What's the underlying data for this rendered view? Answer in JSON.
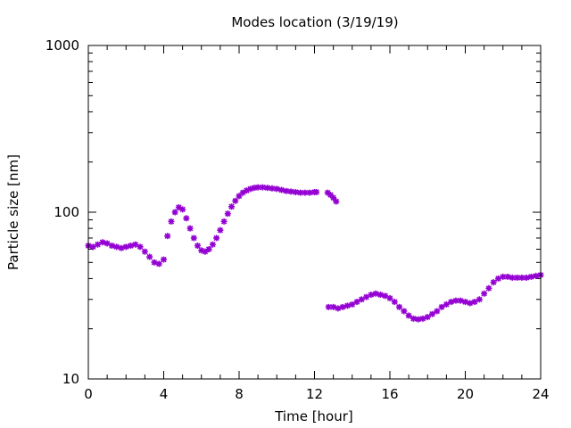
{
  "chart_data": {
    "type": "scatter",
    "title": "Modes location (3/19/19)",
    "xlabel": "Time [hour]",
    "ylabel": "Particle size [nm]",
    "xlim": [
      0,
      24
    ],
    "ylim": [
      10,
      1000
    ],
    "yscale": "log",
    "xticks": [
      0,
      4,
      8,
      12,
      16,
      20,
      24
    ],
    "xtick_labels": [
      "0",
      "4",
      "8",
      "12",
      "16",
      "20",
      "24"
    ],
    "yticks": [
      10,
      100,
      1000
    ],
    "ytick_labels": [
      "10",
      "100",
      "1000"
    ],
    "grid": false,
    "legend": "none",
    "marker": "asterisk",
    "marker_color": "#9400d3",
    "series": [
      {
        "x": [
          0.0,
          0.25,
          0.5,
          0.75,
          1.0,
          1.25,
          1.5,
          1.75,
          2.0,
          2.25,
          2.5,
          2.75,
          3.0,
          3.25,
          3.5,
          3.75,
          4.0,
          4.2,
          4.4,
          4.6,
          4.8,
          5.0,
          5.2,
          5.4,
          5.6,
          5.8,
          6.0,
          6.2,
          6.4,
          6.6,
          6.8,
          7.0,
          7.2,
          7.4,
          7.6,
          7.8,
          8.0,
          8.2,
          8.4,
          8.6,
          8.8,
          9.0,
          9.25,
          9.5,
          9.75,
          10.0,
          10.25,
          10.5,
          10.75,
          11.0,
          11.25,
          11.5,
          11.75,
          12.0,
          12.1,
          12.7,
          12.85,
          13.0,
          13.15,
          12.75,
          13.0,
          13.25,
          13.5,
          13.75,
          14.0,
          14.25,
          14.5,
          14.75,
          15.0,
          15.25,
          15.5,
          15.75,
          16.0,
          16.25,
          16.5,
          16.75,
          17.0,
          17.25,
          17.5,
          17.75,
          18.0,
          18.25,
          18.5,
          18.75,
          19.0,
          19.25,
          19.5,
          19.75,
          20.0,
          20.25,
          20.5,
          20.75,
          21.0,
          21.25,
          21.5,
          21.75,
          22.0,
          22.25,
          22.5,
          22.75,
          23.0,
          23.25,
          23.5,
          23.75,
          24.0
        ],
        "y": [
          63,
          62,
          64,
          66,
          65,
          63,
          62,
          61,
          62,
          63,
          64,
          62,
          58,
          54,
          50,
          49,
          52,
          72,
          88,
          100,
          107,
          104,
          92,
          80,
          70,
          63,
          59,
          58,
          60,
          64,
          70,
          78,
          88,
          98,
          108,
          117,
          125,
          131,
          135,
          138,
          140,
          141,
          141,
          140,
          139,
          138,
          136,
          134,
          133,
          132,
          131,
          131,
          131,
          132,
          132,
          131,
          127,
          122,
          116,
          27,
          27,
          26.5,
          27,
          27.5,
          28,
          29,
          30,
          31,
          32,
          32.5,
          32,
          31.5,
          30.5,
          29,
          27,
          25.5,
          24,
          23,
          22.8,
          23,
          23.5,
          24.5,
          25.5,
          27,
          28,
          29,
          29.5,
          29.5,
          29,
          28.5,
          29,
          30,
          32.5,
          35,
          38,
          40,
          41,
          41,
          40.5,
          40.5,
          40.5,
          40.5,
          41,
          41.5,
          42
        ]
      }
    ]
  }
}
